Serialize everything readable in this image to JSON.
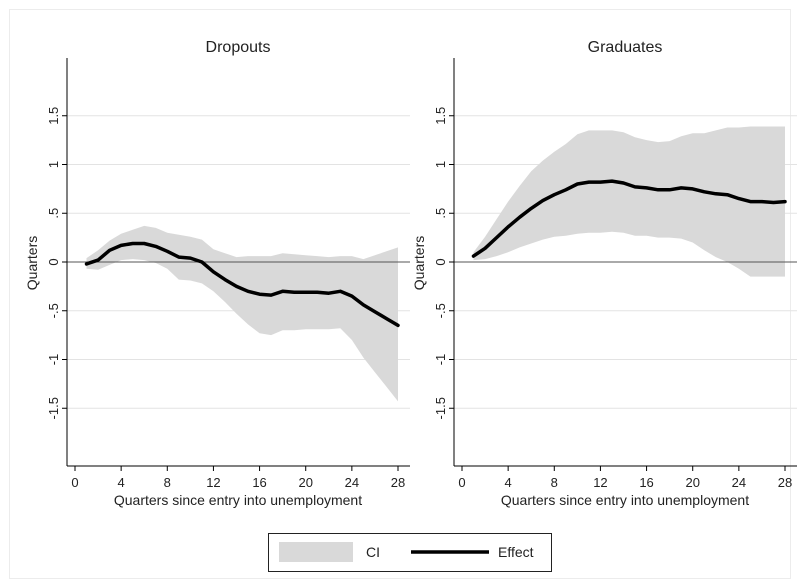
{
  "colors": {
    "ci_fill": "#d9d9d9",
    "effect_line": "#000000",
    "axis": "#000000",
    "grid": "#e3e3e3",
    "legend_border": "#222222"
  },
  "legend": {
    "items": [
      {
        "label": "CI",
        "kind": "ci-band"
      },
      {
        "label": "Effect",
        "kind": "effect-line"
      }
    ],
    "position": "bottom-center"
  },
  "chart_data": [
    {
      "type": "area",
      "title": "Dropouts",
      "xlabel": "Quarters since entry into unemployment",
      "ylabel": "Quarters",
      "xlim": [
        0,
        28
      ],
      "ylim": [
        -2.1,
        2.1
      ],
      "xticks": [
        0,
        4,
        8,
        12,
        16,
        20,
        24,
        28
      ],
      "xtick_labels": [
        "0",
        "4",
        "8",
        "12",
        "16",
        "20",
        "24",
        "28"
      ],
      "yticks": [
        -1.5,
        -1,
        -0.5,
        0,
        0.5,
        1,
        1.5
      ],
      "ytick_labels": [
        "-1.5",
        "-1",
        "-.5",
        "0",
        ".5",
        "1",
        "1.5"
      ],
      "grid": true,
      "zero_line": true,
      "x": [
        1,
        2,
        3,
        4,
        5,
        6,
        7,
        8,
        9,
        10,
        11,
        12,
        13,
        14,
        15,
        16,
        17,
        18,
        19,
        20,
        21,
        22,
        23,
        24,
        25,
        26,
        27,
        28
      ],
      "series": [
        {
          "name": "Effect",
          "values": [
            -0.02,
            0.02,
            0.12,
            0.17,
            0.19,
            0.19,
            0.16,
            0.11,
            0.05,
            0.04,
            0.0,
            -0.1,
            -0.18,
            -0.25,
            -0.3,
            -0.33,
            -0.34,
            -0.3,
            -0.31,
            -0.31,
            -0.31,
            -0.32,
            -0.3,
            -0.35,
            -0.44,
            -0.51,
            -0.58,
            -0.65
          ]
        },
        {
          "name": "CI lower",
          "values": [
            -0.07,
            -0.08,
            -0.03,
            0.02,
            0.03,
            0.02,
            -0.01,
            -0.07,
            -0.18,
            -0.19,
            -0.22,
            -0.3,
            -0.41,
            -0.53,
            -0.64,
            -0.73,
            -0.75,
            -0.7,
            -0.7,
            -0.69,
            -0.69,
            -0.69,
            -0.68,
            -0.8,
            -0.98,
            -1.13,
            -1.28,
            -1.43
          ]
        },
        {
          "name": "CI upper",
          "values": [
            0.04,
            0.12,
            0.22,
            0.29,
            0.33,
            0.37,
            0.35,
            0.3,
            0.28,
            0.26,
            0.23,
            0.13,
            0.09,
            0.05,
            0.06,
            0.06,
            0.06,
            0.09,
            0.08,
            0.07,
            0.06,
            0.05,
            0.06,
            0.06,
            0.03,
            0.07,
            0.11,
            0.15
          ]
        }
      ]
    },
    {
      "type": "area",
      "title": "Graduates",
      "xlabel": "Quarters since entry into unemployment",
      "ylabel": "Quarters",
      "xlim": [
        0,
        28
      ],
      "ylim": [
        -2.1,
        2.1
      ],
      "xticks": [
        0,
        4,
        8,
        12,
        16,
        20,
        24,
        28
      ],
      "xtick_labels": [
        "0",
        "4",
        "8",
        "12",
        "16",
        "20",
        "24",
        "28"
      ],
      "yticks": [
        -1.5,
        -1,
        -0.5,
        0,
        0.5,
        1,
        1.5
      ],
      "ytick_labels": [
        "-1.5",
        "-1",
        "-.5",
        "0",
        ".5",
        "1",
        "1.5"
      ],
      "grid": true,
      "zero_line": true,
      "x": [
        1,
        2,
        3,
        4,
        5,
        6,
        7,
        8,
        9,
        10,
        11,
        12,
        13,
        14,
        15,
        16,
        17,
        18,
        19,
        20,
        21,
        22,
        23,
        24,
        25,
        26,
        27,
        28
      ],
      "series": [
        {
          "name": "Effect",
          "values": [
            0.06,
            0.14,
            0.25,
            0.36,
            0.46,
            0.55,
            0.63,
            0.69,
            0.74,
            0.8,
            0.82,
            0.82,
            0.83,
            0.81,
            0.77,
            0.76,
            0.74,
            0.74,
            0.76,
            0.75,
            0.72,
            0.7,
            0.69,
            0.65,
            0.62,
            0.62,
            0.61,
            0.62
          ]
        },
        {
          "name": "CI lower",
          "values": [
            0.02,
            0.03,
            0.06,
            0.1,
            0.15,
            0.19,
            0.23,
            0.26,
            0.27,
            0.29,
            0.3,
            0.3,
            0.31,
            0.3,
            0.27,
            0.27,
            0.25,
            0.25,
            0.24,
            0.2,
            0.12,
            0.05,
            0.0,
            -0.07,
            -0.15,
            -0.15,
            -0.15,
            -0.15
          ]
        },
        {
          "name": "CI upper",
          "values": [
            0.1,
            0.26,
            0.44,
            0.62,
            0.78,
            0.93,
            1.04,
            1.13,
            1.21,
            1.31,
            1.35,
            1.35,
            1.35,
            1.33,
            1.28,
            1.25,
            1.23,
            1.24,
            1.29,
            1.32,
            1.32,
            1.35,
            1.38,
            1.38,
            1.39,
            1.39,
            1.39,
            1.39
          ]
        }
      ]
    }
  ]
}
